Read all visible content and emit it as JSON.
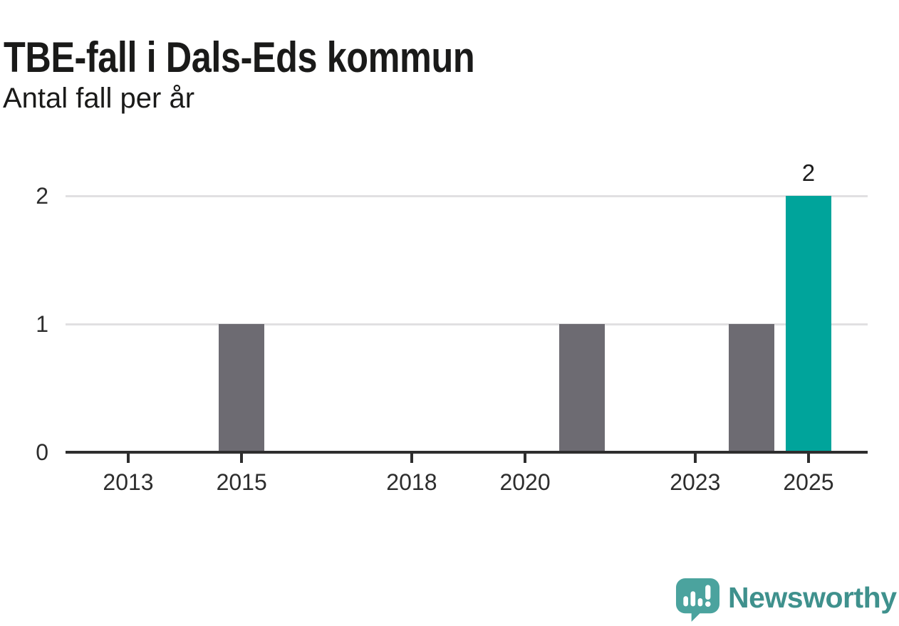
{
  "title": "TBE-fall i Dals-Eds kommun",
  "subtitle": "Antal fall per år",
  "brand": {
    "name": "Newsworthy"
  },
  "colors": {
    "text": "#1a1a19",
    "axis": "#2e2e2e",
    "axis_label": "#2d2d2d",
    "grid": "#e1e0e2",
    "bar_default": "#6d6b72",
    "bar_highlight": "#00a49b",
    "value_label": "#1d1d1d",
    "brand_icon": "#4ba39e",
    "brand_text": "#3f918d"
  },
  "chart_data": {
    "type": "bar",
    "title": "TBE-fall i Dals-Eds kommun",
    "subtitle": "Antal fall per år",
    "categories": [
      "2013",
      "2014",
      "2015",
      "2016",
      "2017",
      "2018",
      "2019",
      "2020",
      "2021",
      "2022",
      "2023",
      "2024",
      "2025"
    ],
    "values": [
      0,
      0,
      1,
      0,
      0,
      0,
      0,
      0,
      1,
      0,
      0,
      1,
      2
    ],
    "highlight_category": "2025",
    "value_labels": [
      {
        "category": "2025",
        "text": "2"
      }
    ],
    "xticks": [
      "2013",
      "2015",
      "2018",
      "2020",
      "2023",
      "2025"
    ],
    "yticks": [
      0,
      1,
      2
    ],
    "ylim": [
      0,
      2
    ],
    "xlabel": "",
    "ylabel": "",
    "grid": "horizontal-only",
    "legend": "none"
  }
}
